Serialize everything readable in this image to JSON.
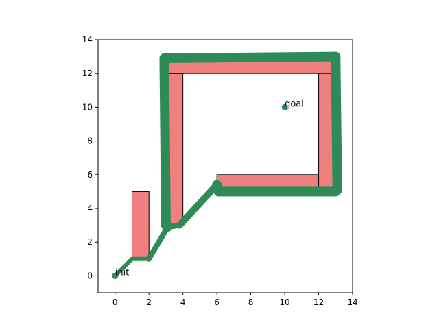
{
  "chart_data": {
    "type": "scatter",
    "title": "",
    "xlabel": "",
    "ylabel": "",
    "xlim": [
      -1,
      14
    ],
    "ylim": [
      -1,
      14
    ],
    "xticks": [
      0,
      2,
      4,
      6,
      8,
      10,
      12,
      14
    ],
    "yticks": [
      0,
      2,
      4,
      6,
      8,
      10,
      12,
      14
    ],
    "colors": {
      "obstacle_fill": "#f08080",
      "obstacle_edge": "#000000",
      "path": "#2e8b57",
      "marker": "#2e8b57"
    },
    "obstacles": [
      {
        "x": 1,
        "y": 1,
        "width": 1,
        "height": 4
      },
      {
        "x": 3,
        "y": 3,
        "width": 1,
        "height": 9
      },
      {
        "x": 3,
        "y": 12,
        "width": 10,
        "height": 1
      },
      {
        "x": 12,
        "y": 5,
        "width": 1,
        "height": 7
      },
      {
        "x": 6,
        "y": 5,
        "width": 6,
        "height": 1
      }
    ],
    "path": [
      [
        0,
        0
      ],
      [
        1,
        1
      ],
      [
        2,
        1
      ],
      [
        3.1,
        2.9
      ],
      [
        3.8,
        3.0
      ],
      [
        6.0,
        5.4
      ],
      [
        6.1,
        5.0
      ],
      [
        13.0,
        5.0
      ],
      [
        13.1,
        5.1
      ],
      [
        13.0,
        13.0
      ],
      [
        2.9,
        12.9
      ],
      [
        3.0,
        3.0
      ],
      [
        3.1,
        2.9
      ]
    ],
    "points": [
      {
        "label": "init",
        "x": 0,
        "y": 0
      },
      {
        "label": "goal",
        "x": 10,
        "y": 10
      }
    ]
  }
}
